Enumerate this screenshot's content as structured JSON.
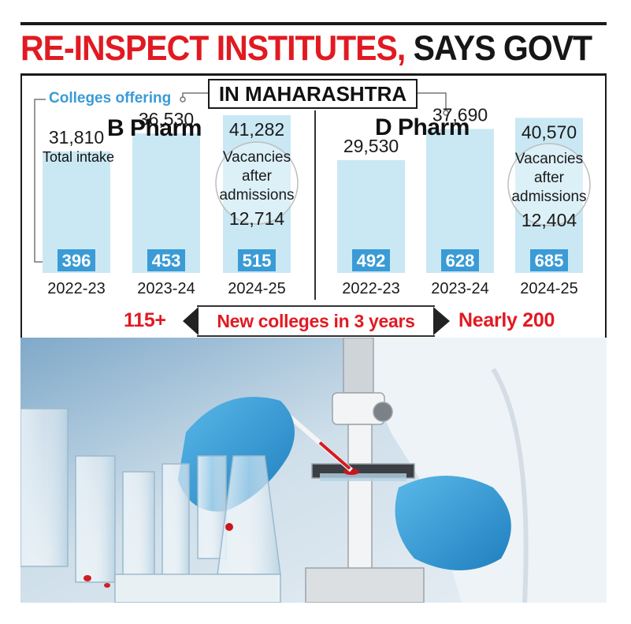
{
  "headline": {
    "red": "RE-INSPECT INSTITUTES,",
    "black": " SAYS GOVT"
  },
  "region": "IN MAHARASHTRA",
  "legend": {
    "colleges_offering": "Colleges offering",
    "total_intake": "Total intake"
  },
  "vacancies_label": [
    "Vacancies",
    "after",
    "admissions"
  ],
  "bottom": {
    "left_value": "115+",
    "center": "New colleges in 3 years",
    "right_value": "Nearly 200"
  },
  "colors": {
    "accent_red": "#e11a22",
    "bar_light": "#c9e8f4",
    "bar_dark": "#3a9bd6",
    "label_blue": "#3a9bd6"
  },
  "chart_data": [
    {
      "type": "bar",
      "title": "B Pharm",
      "categories": [
        "2022-23",
        "2023-24",
        "2024-25"
      ],
      "series": [
        {
          "name": "Total intake",
          "values": [
            31810,
            36530,
            41282
          ]
        },
        {
          "name": "Colleges offering",
          "values": [
            396,
            453,
            515
          ]
        }
      ],
      "value_labels": [
        "31,810",
        "36,530",
        "41,282"
      ],
      "college_labels": [
        "396",
        "453",
        "515"
      ],
      "vacancies_after_admissions": {
        "category": "2024-25",
        "value": 12714,
        "label": "12,714"
      }
    },
    {
      "type": "bar",
      "title": "D Pharm",
      "categories": [
        "2022-23",
        "2023-24",
        "2024-25"
      ],
      "series": [
        {
          "name": "Total intake",
          "values": [
            29530,
            37690,
            40570
          ]
        },
        {
          "name": "Colleges offering",
          "values": [
            492,
            628,
            685
          ]
        }
      ],
      "value_labels": [
        "29,530",
        "37,690",
        "40,570"
      ],
      "college_labels": [
        "492",
        "628",
        "685"
      ],
      "vacancies_after_admissions": {
        "category": "2024-25",
        "value": 12404,
        "label": "12,404"
      }
    }
  ]
}
